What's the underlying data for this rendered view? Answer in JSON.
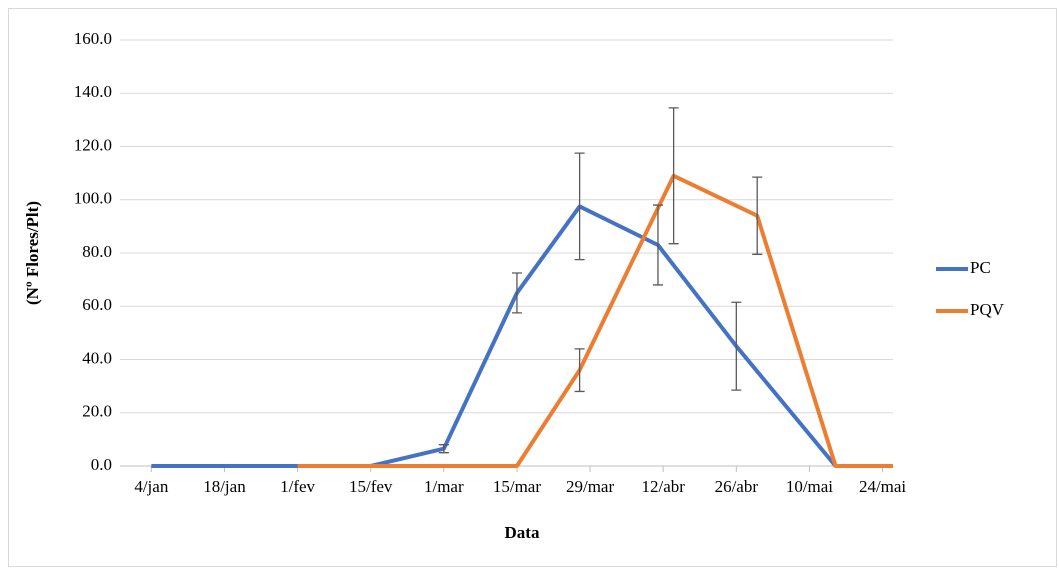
{
  "chart_data": {
    "type": "line",
    "x_label": "Data",
    "y_label": "(Nº Flores/Plt)",
    "xlim": [
      -2,
      146
    ],
    "xticks": [
      {
        "value": 4,
        "label": "4/jan"
      },
      {
        "value": 18,
        "label": "18/jan"
      },
      {
        "value": 32,
        "label": "1/fev"
      },
      {
        "value": 46,
        "label": "15/fev"
      },
      {
        "value": 60,
        "label": "1/mar"
      },
      {
        "value": 74,
        "label": "15/mar"
      },
      {
        "value": 88,
        "label": "29/mar"
      },
      {
        "value": 102,
        "label": "12/abr"
      },
      {
        "value": 116,
        "label": "26/abr"
      },
      {
        "value": 130,
        "label": "10/mai"
      },
      {
        "value": 144,
        "label": "24/mai"
      }
    ],
    "ylim": [
      0,
      160
    ],
    "yticks": [
      {
        "value": 0,
        "label": "0.0"
      },
      {
        "value": 20,
        "label": "20.0"
      },
      {
        "value": 40,
        "label": "40.0"
      },
      {
        "value": 60,
        "label": "60.0"
      },
      {
        "value": 80,
        "label": "80.0"
      },
      {
        "value": 100,
        "label": "100.0"
      },
      {
        "value": 120,
        "label": "120.0"
      },
      {
        "value": 140,
        "label": "140.0"
      },
      {
        "value": 160,
        "label": "160.0"
      }
    ],
    "grid": true,
    "legend": "right",
    "series": [
      {
        "name": "PC",
        "color": "#4472c4",
        "x": [
          4,
          18,
          32,
          46,
          60,
          74,
          86,
          101,
          116,
          135
        ],
        "values": [
          0,
          0,
          0,
          0,
          6.5,
          65,
          97.5,
          83,
          45,
          0
        ],
        "errors": [
          null,
          null,
          null,
          null,
          1.5,
          7.5,
          20,
          15,
          16.5,
          null
        ]
      },
      {
        "name": "PQV",
        "color": "#ed7d31",
        "x": [
          32,
          46,
          60,
          74,
          86,
          104,
          120,
          135,
          146
        ],
        "values": [
          0,
          0,
          0,
          0,
          36,
          109,
          94,
          0,
          0
        ],
        "errors": [
          null,
          null,
          null,
          null,
          8,
          25.5,
          14.5,
          null,
          null
        ]
      }
    ]
  }
}
